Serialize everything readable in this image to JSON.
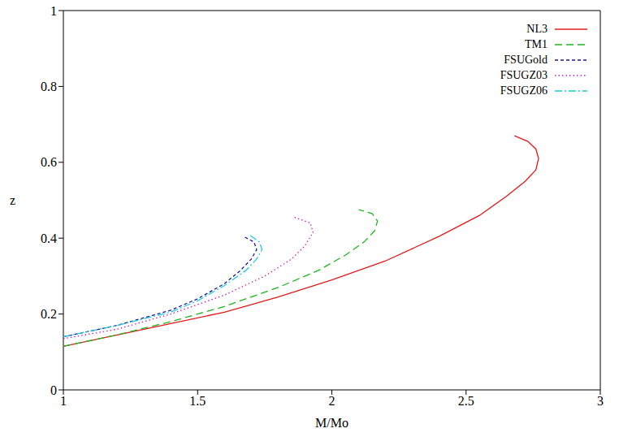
{
  "chart_data": {
    "type": "line",
    "x_label": "M/Mo",
    "y_label": "z",
    "xlim": [
      1,
      3
    ],
    "xticks": [
      1,
      1.5,
      2,
      2.5,
      3
    ],
    "ylim": [
      0,
      1
    ],
    "yticks": [
      0,
      0.2,
      0.4,
      0.6,
      0.8,
      1
    ],
    "grid": false,
    "legend": "upper right",
    "series": [
      {
        "name": "NL3",
        "color": "#e41a1c",
        "line_style": "solid",
        "x": [
          1,
          1.2,
          1.4,
          1.6,
          1.8,
          2.0,
          2.2,
          2.4,
          2.55,
          2.65,
          2.72,
          2.76,
          2.77,
          2.76,
          2.73,
          2.68
        ],
        "values": [
          0.115,
          0.145,
          0.175,
          0.205,
          0.245,
          0.29,
          0.34,
          0.405,
          0.46,
          0.51,
          0.55,
          0.58,
          0.61,
          0.635,
          0.655,
          0.67
        ]
      },
      {
        "name": "TM1",
        "color": "#1fb51f",
        "line_style": "dashed",
        "x": [
          1,
          1.2,
          1.4,
          1.6,
          1.8,
          1.95,
          2.05,
          2.12,
          2.16,
          2.17,
          2.15,
          2.1
        ],
        "values": [
          0.115,
          0.145,
          0.18,
          0.22,
          0.27,
          0.315,
          0.355,
          0.39,
          0.42,
          0.445,
          0.465,
          0.475
        ]
      },
      {
        "name": "FSUGold",
        "color": "#1a1a9e",
        "line_style": "short-dashed",
        "x": [
          1,
          1.2,
          1.4,
          1.5,
          1.6,
          1.66,
          1.7,
          1.72,
          1.71,
          1.67
        ],
        "values": [
          0.14,
          0.17,
          0.21,
          0.24,
          0.28,
          0.315,
          0.345,
          0.37,
          0.39,
          0.405
        ]
      },
      {
        "name": "FSUGZ03",
        "color": "#c020c0",
        "line_style": "dotted",
        "x": [
          1,
          1.2,
          1.4,
          1.6,
          1.75,
          1.85,
          1.9,
          1.93,
          1.92,
          1.86
        ],
        "values": [
          0.135,
          0.16,
          0.2,
          0.25,
          0.3,
          0.345,
          0.38,
          0.415,
          0.44,
          0.455
        ]
      },
      {
        "name": "FSUGZ06",
        "color": "#20c8e0",
        "line_style": "dashdot",
        "x": [
          1,
          1.2,
          1.4,
          1.5,
          1.6,
          1.68,
          1.72,
          1.74,
          1.73,
          1.69
        ],
        "values": [
          0.14,
          0.17,
          0.205,
          0.235,
          0.275,
          0.315,
          0.345,
          0.37,
          0.39,
          0.41
        ]
      }
    ]
  }
}
